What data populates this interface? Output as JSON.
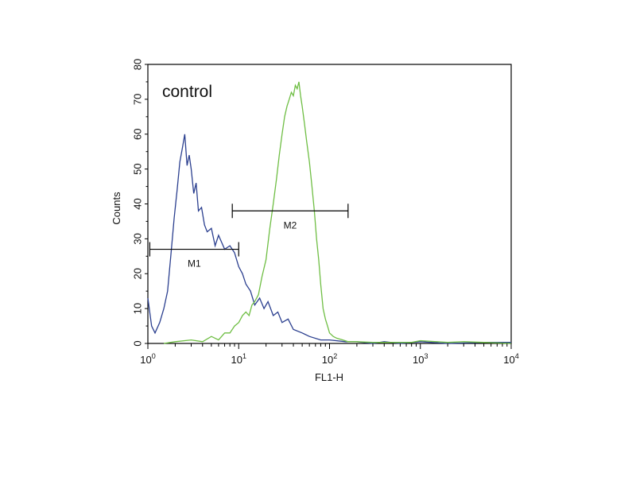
{
  "chart_data": {
    "type": "line",
    "title": "",
    "xlabel": "FL1-H",
    "ylabel": "Counts",
    "x_scale": "log",
    "xlim": [
      1,
      10000
    ],
    "ylim": [
      0,
      80
    ],
    "x_ticks": [
      {
        "value": 1,
        "base": "10",
        "exp": "0"
      },
      {
        "value": 10,
        "base": "10",
        "exp": "1"
      },
      {
        "value": 100,
        "base": "10",
        "exp": "2"
      },
      {
        "value": 1000,
        "base": "10",
        "exp": "3"
      },
      {
        "value": 10000,
        "base": "10",
        "exp": "4"
      }
    ],
    "y_ticks": [
      "0",
      "10",
      "20",
      "30",
      "40",
      "50",
      "60",
      "70",
      "80"
    ],
    "annotation": "control",
    "grid": false,
    "legend": "none",
    "markers": [
      {
        "label": "M1",
        "x_start": 1.05,
        "x_end": 10,
        "y": 27
      },
      {
        "label": "M2",
        "x_start": 8.5,
        "x_end": 160,
        "y": 38
      }
    ],
    "series": [
      {
        "color": "#2b3f8f",
        "x": [
          1,
          1.1,
          1.2,
          1.35,
          1.5,
          1.65,
          1.8,
          1.95,
          2.1,
          2.25,
          2.4,
          2.55,
          2.7,
          2.85,
          3.0,
          3.2,
          3.4,
          3.6,
          3.9,
          4.2,
          4.5,
          5.0,
          5.5,
          6.0,
          7.0,
          8.0,
          9.0,
          10,
          11,
          12,
          13.5,
          15,
          17,
          19,
          21,
          24,
          27,
          30,
          35,
          40,
          50,
          60,
          80,
          100,
          150,
          200,
          300,
          400,
          600,
          1000,
          2000,
          5000,
          10000
        ],
        "y": [
          13,
          5,
          3,
          6,
          10,
          15,
          26,
          36,
          44,
          52,
          56,
          60,
          51,
          54,
          50,
          43,
          46,
          38,
          39,
          34,
          32,
          33,
          28,
          31,
          27,
          28,
          26,
          22,
          20,
          17,
          15,
          11,
          13,
          10,
          12,
          8,
          9,
          6,
          7,
          4,
          3,
          2,
          1,
          1,
          0.5,
          0.5,
          0,
          0.5,
          0,
          0.5,
          0,
          0.3,
          0.3
        ]
      },
      {
        "color": "#6fbe44",
        "x": [
          1.5,
          2,
          3,
          4,
          5,
          6,
          7,
          8,
          9,
          10,
          11,
          12,
          13,
          14,
          15,
          16.5,
          18,
          20,
          22,
          24,
          26,
          28,
          30,
          32,
          34,
          36,
          38,
          40,
          42,
          44,
          46,
          48,
          50,
          53,
          56,
          60,
          64,
          68,
          72,
          76,
          80,
          85,
          90,
          95,
          100,
          110,
          120,
          140,
          160,
          200,
          300,
          500,
          800,
          1000,
          2000,
          3000,
          5000,
          10000
        ],
        "y": [
          0,
          0.5,
          1,
          0.5,
          2,
          1,
          3,
          3,
          5,
          6,
          8,
          9,
          8,
          11,
          12,
          14,
          19,
          24,
          33,
          40,
          47,
          54,
          60,
          65,
          68,
          70,
          72,
          71,
          74,
          73,
          75,
          71,
          68,
          63,
          58,
          52,
          45,
          38,
          30,
          24,
          17,
          10,
          7,
          5,
          3,
          2,
          1.5,
          1,
          0.5,
          0.5,
          0.3,
          0.3,
          0.3,
          0.8,
          0.3,
          0.5,
          0.3,
          0
        ]
      }
    ]
  }
}
